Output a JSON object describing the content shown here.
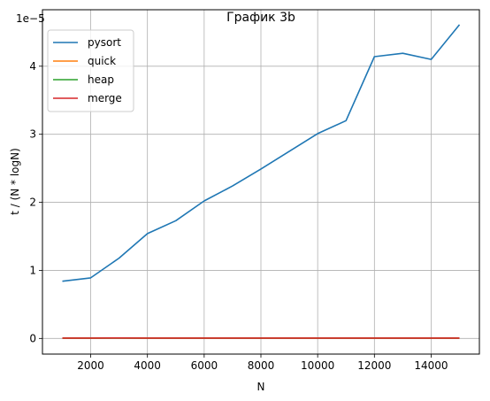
{
  "chart_data": {
    "type": "line",
    "title": "График 3b",
    "xlabel": "N",
    "ylabel": "t / (N * logN)",
    "offset_text": "1e−5",
    "x": [
      1000,
      2000,
      3000,
      4000,
      5000,
      6000,
      7000,
      8000,
      9000,
      10000,
      11000,
      12000,
      13000,
      14000,
      15000
    ],
    "xlim": [
      300,
      15700
    ],
    "ylim": [
      -0.23,
      4.83
    ],
    "xticks": [
      2000,
      4000,
      6000,
      8000,
      10000,
      12000,
      14000
    ],
    "xtick_labels": [
      "2000",
      "4000",
      "6000",
      "8000",
      "10000",
      "12000",
      "14000"
    ],
    "yticks": [
      0,
      1,
      2,
      3,
      4
    ],
    "ytick_labels": [
      "0",
      "1",
      "2",
      "3",
      "4"
    ],
    "grid": true,
    "legend_position": "top-left",
    "series": [
      {
        "name": "pysort",
        "color": "#1f77b4",
        "values": [
          0.84,
          0.89,
          1.18,
          1.54,
          1.73,
          2.02,
          2.24,
          2.49,
          2.75,
          3.01,
          3.2,
          4.14,
          4.19,
          4.1,
          4.61
        ]
      },
      {
        "name": "quick",
        "color": "#ff7f0e",
        "values": [
          0.006,
          0.006,
          0.007,
          0.006,
          0.006,
          0.006,
          0.006,
          0.006,
          0.006,
          0.006,
          0.006,
          0.006,
          0.006,
          0.006,
          0.006
        ]
      },
      {
        "name": "heap",
        "color": "#2ca02c",
        "values": [
          0.004,
          0.004,
          0.005,
          0.004,
          0.004,
          0.004,
          0.004,
          0.004,
          0.004,
          0.004,
          0.004,
          0.004,
          0.004,
          0.004,
          0.004
        ]
      },
      {
        "name": "merge",
        "color": "#d62728",
        "values": [
          0.005,
          0.005,
          0.007,
          0.005,
          0.005,
          0.005,
          0.005,
          0.005,
          0.005,
          0.005,
          0.005,
          0.005,
          0.005,
          0.005,
          0.005
        ]
      }
    ]
  }
}
